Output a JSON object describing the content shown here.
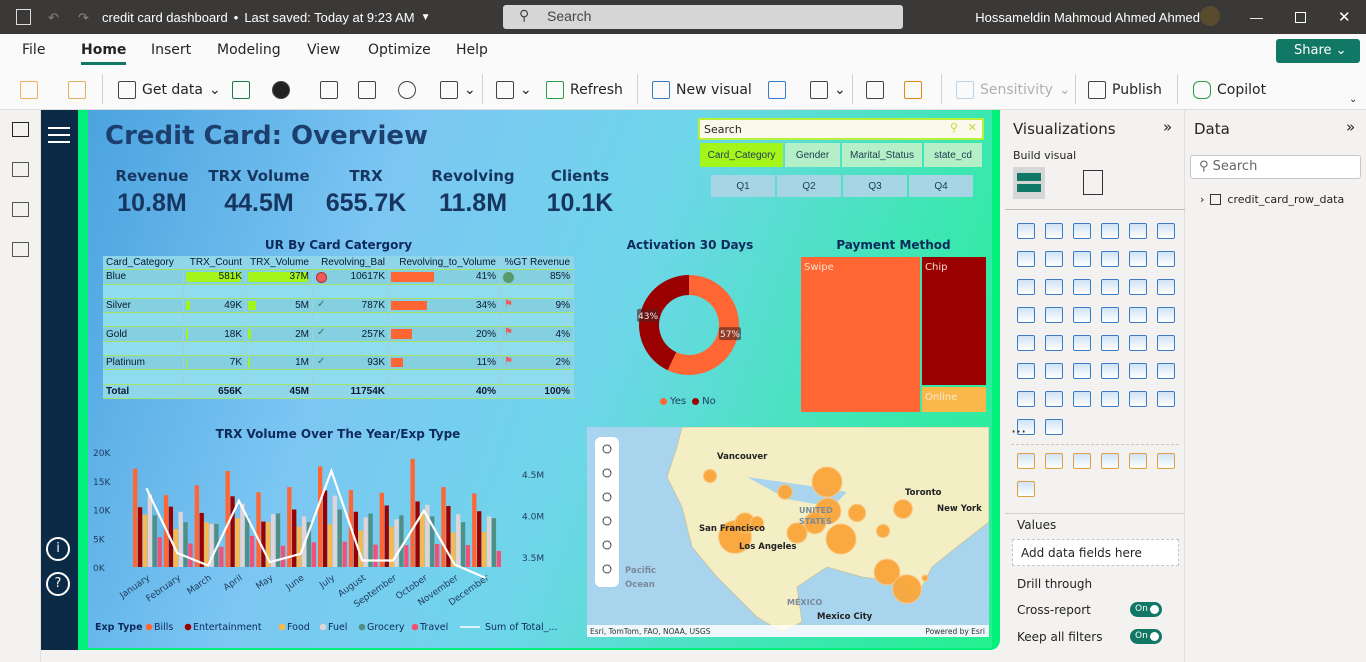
{
  "titlebar": {
    "file_title": "credit card dashboard",
    "saved_status": "Last saved: Today at 9:23 AM",
    "search_placeholder": "Search",
    "user_name": "Hossameldin Mahmoud Ahmed Ahmed"
  },
  "menu": [
    "File",
    "Home",
    "Insert",
    "Modeling",
    "View",
    "Optimize",
    "Help"
  ],
  "active_menu": "Home",
  "ribbon": {
    "get_data": "Get data",
    "refresh": "Refresh",
    "new_visual": "New visual",
    "sensitivity": "Sensitivity",
    "publish": "Publish",
    "copilot": "Copilot",
    "share": "Share"
  },
  "report": {
    "title": "Credit Card: Overview",
    "kpis": [
      {
        "label": "Revenue",
        "value": "10.8M"
      },
      {
        "label": "TRX Volume",
        "value": "44.5M"
      },
      {
        "label": "TRX",
        "value": "655.7K"
      },
      {
        "label": "Revolving",
        "value": "11.8M"
      },
      {
        "label": "Clients",
        "value": "10.1K"
      }
    ],
    "slicer": {
      "search_placeholder": "Search",
      "fields": [
        "Card_Category",
        "Gender",
        "Marital_Status",
        "state_cd"
      ],
      "selected": "Card_Category",
      "quarters": [
        "Q1",
        "Q2",
        "Q3",
        "Q4"
      ]
    },
    "table": {
      "title": "UR By Card Catergory",
      "columns": [
        "Card_Category",
        "TRX_Count",
        "TRX_Volume",
        "Revolving_Bal",
        "Revolving_to_Volume",
        "%GT Revenue"
      ],
      "rows": [
        {
          "cat": "Blue",
          "count": "581K",
          "vol": "37M",
          "rev": "10617K",
          "rtv": "41%",
          "gt": "85%",
          "count_pct": 100,
          "vol_pct": 100,
          "rtv_pct": 41,
          "rev_icon": "red-circle",
          "gt_icon": "green-check"
        },
        {
          "cat": "Silver",
          "count": "49K",
          "vol": "5M",
          "rev": "787K",
          "rtv": "34%",
          "gt": "9%",
          "count_pct": 8,
          "vol_pct": 14,
          "rtv_pct": 34,
          "rev_icon": "check",
          "gt_icon": "red-flag"
        },
        {
          "cat": "Gold",
          "count": "18K",
          "vol": "2M",
          "rev": "257K",
          "rtv": "20%",
          "gt": "4%",
          "count_pct": 3,
          "vol_pct": 5,
          "rtv_pct": 20,
          "rev_icon": "check",
          "gt_icon": "red-flag"
        },
        {
          "cat": "Platinum",
          "count": "7K",
          "vol": "1M",
          "rev": "93K",
          "rtv": "11%",
          "gt": "2%",
          "count_pct": 1,
          "vol_pct": 3,
          "rtv_pct": 11,
          "rev_icon": "check",
          "gt_icon": "red-flag"
        }
      ],
      "total": {
        "cat": "Total",
        "count": "656K",
        "vol": "45M",
        "rev": "11754K",
        "rtv": "40%",
        "gt": "100%"
      }
    },
    "map": {
      "labels": [
        "Vancouver",
        "UNITED",
        "STATES",
        "Los Angeles",
        "New York",
        "Toronto",
        "Pacific",
        "Ocean",
        "MÉXICO",
        "Mexico City",
        "San Francisco"
      ],
      "attribution": "Esri, TomTom, FAO, NOAA, USGS",
      "powered": "Powered by Esri"
    }
  },
  "chart_data": [
    {
      "type": "bar+line",
      "title": "TRX Volume Over The Year/Exp Type",
      "legend_title": "Exp Type",
      "legend_position": "bottom",
      "categories": [
        "January",
        "February",
        "March",
        "April",
        "May",
        "June",
        "July",
        "August",
        "September",
        "October",
        "November",
        "December"
      ],
      "y_ticks": [
        "0K",
        "5K",
        "10K",
        "15K",
        "20K"
      ],
      "ylim": [
        0,
        20000
      ],
      "y2_ticks": [
        "3.5M",
        "4.0M",
        "4.5M"
      ],
      "y2lim": [
        3.2,
        4.6
      ],
      "series": [
        {
          "name": "Bills",
          "color": "#ff6633",
          "values": [
            17100,
            12500,
            14200,
            16700,
            13000,
            13900,
            17500,
            13400,
            12900,
            18800,
            13900,
            12800
          ]
        },
        {
          "name": "Entertainment",
          "color": "#9b0000",
          "values": [
            10400,
            10500,
            9400,
            12300,
            7900,
            10000,
            13300,
            9600,
            10700,
            11400,
            10600,
            9700
          ]
        },
        {
          "name": "Food",
          "color": "#fbb84a",
          "values": [
            9100,
            6600,
            7800,
            8500,
            7800,
            7000,
            7400,
            6400,
            7000,
            9300,
            6000,
            6100
          ]
        },
        {
          "name": "Fuel",
          "color": "#e1d4d8",
          "values": [
            12600,
            9600,
            7500,
            11000,
            9200,
            8800,
            12400,
            8600,
            8300,
            10800,
            9200,
            8800
          ]
        },
        {
          "name": "Grocery",
          "color": "#4f8f86",
          "values": [
            9000,
            7800,
            7500,
            8800,
            9300,
            7800,
            10000,
            9300,
            9000,
            8800,
            7800,
            8500
          ]
        },
        {
          "name": "Travel",
          "color": "#f34f77",
          "values": [
            5200,
            4100,
            3500,
            5400,
            3700,
            4300,
            4400,
            3900,
            3800,
            4000,
            3800,
            2800
          ]
        },
        {
          "name": "Sum of Total_...",
          "color": "#ffffff",
          "type": "line",
          "axis": "right",
          "values": [
            4.34,
            3.56,
            3.41,
            4.19,
            3.45,
            3.55,
            4.55,
            3.47,
            3.47,
            4.07,
            3.42,
            3.26
          ]
        }
      ]
    },
    {
      "type": "pie",
      "subtype": "donut",
      "title": "Activation 30 Days",
      "slices": [
        {
          "name": "Yes",
          "value": 57,
          "label": "57%",
          "color": "#ff6633"
        },
        {
          "name": "No",
          "value": 43,
          "label": "43%",
          "color": "#9b0000"
        }
      ]
    },
    {
      "type": "treemap",
      "title": "Payment Method",
      "items": [
        {
          "name": "Swipe",
          "color": "#ff6633"
        },
        {
          "name": "Chip",
          "color": "#9b0000"
        },
        {
          "name": "Online",
          "color": "#fbb84a"
        }
      ]
    }
  ],
  "viz_pane": {
    "title": "Visualizations",
    "build_visual": "Build visual",
    "values": "Values",
    "add_fields": "Add data fields here",
    "drill_through": "Drill through",
    "cross_report": "Cross-report",
    "keep_filters": "Keep all filters",
    "toggle_on": "On",
    "more": "···"
  },
  "data_pane": {
    "title": "Data",
    "search_placeholder": "Search",
    "table": "credit_card_row_data"
  }
}
